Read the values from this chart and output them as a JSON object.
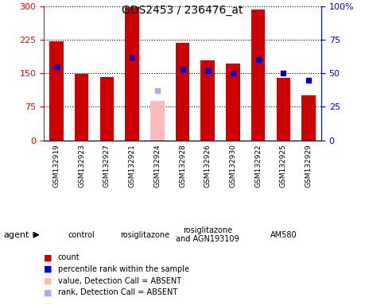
{
  "title": "GDS2453 / 236476_at",
  "samples": [
    "GSM132919",
    "GSM132923",
    "GSM132927",
    "GSM132921",
    "GSM132924",
    "GSM132928",
    "GSM132926",
    "GSM132930",
    "GSM132922",
    "GSM132925",
    "GSM132929"
  ],
  "count_values": [
    222,
    148,
    142,
    298,
    null,
    218,
    178,
    172,
    292,
    140,
    100
  ],
  "count_absent": [
    null,
    null,
    null,
    null,
    88,
    null,
    null,
    null,
    null,
    null,
    null
  ],
  "percentile_values": [
    55,
    null,
    null,
    62,
    null,
    53,
    52,
    50,
    60,
    50,
    45
  ],
  "percentile_absent": [
    null,
    null,
    null,
    null,
    37,
    null,
    null,
    null,
    null,
    null,
    null
  ],
  "absent_mask": [
    false,
    false,
    false,
    false,
    true,
    false,
    false,
    false,
    false,
    false,
    false
  ],
  "groups": [
    {
      "label": "control",
      "start": 0,
      "end": 3,
      "color": "#ccffcc"
    },
    {
      "label": "rosiglitazone",
      "start": 3,
      "end": 5,
      "color": "#99ff99"
    },
    {
      "label": "rosiglitazone\nand AGN193109",
      "start": 5,
      "end": 8,
      "color": "#ccffcc"
    },
    {
      "label": "AM580",
      "start": 8,
      "end": 11,
      "color": "#66dd66"
    }
  ],
  "ylim_left": [
    0,
    300
  ],
  "ylim_right": [
    0,
    100
  ],
  "yticks_left": [
    0,
    75,
    150,
    225,
    300
  ],
  "yticks_right": [
    0,
    25,
    50,
    75,
    100
  ],
  "bar_color_normal": "#cc0000",
  "bar_color_absent": "#ffbbbb",
  "dot_color_normal": "#0000cc",
  "dot_color_absent": "#aaaaff",
  "legend_items": [
    {
      "color": "#cc0000",
      "label": "count"
    },
    {
      "color": "#0000cc",
      "label": "percentile rank within the sample"
    },
    {
      "color": "#ffbbbb",
      "label": "value, Detection Call = ABSENT"
    },
    {
      "color": "#aaaaff",
      "label": "rank, Detection Call = ABSENT"
    }
  ],
  "agent_label": "agent"
}
